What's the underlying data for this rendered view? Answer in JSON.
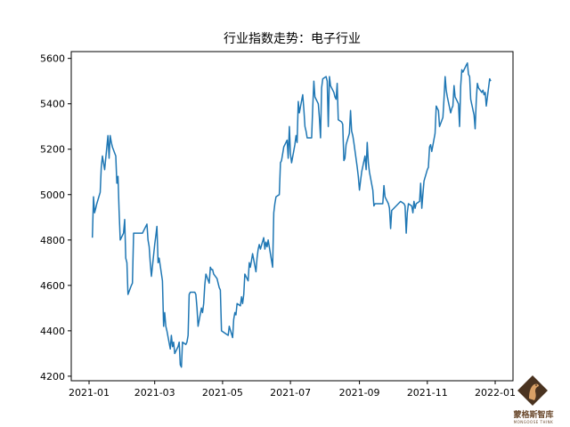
{
  "chart_data": {
    "type": "line",
    "title": "行业指数走势：电子行业",
    "xlabel": "",
    "ylabel": "",
    "ylim": [
      4180,
      5630
    ],
    "xlim": [
      "2020-12-16",
      "2022-01-17"
    ],
    "grid": false,
    "legend": null,
    "line_color": "#1f77b4",
    "x_ticks": [
      "2021-01",
      "2021-03",
      "2021-05",
      "2021-07",
      "2021-09",
      "2021-11",
      "2022-01"
    ],
    "y_ticks": [
      4200,
      4400,
      4600,
      4800,
      5000,
      5200,
      5400,
      5600
    ],
    "series": [
      {
        "name": "电子行业",
        "points": [
          [
            "2021-01-04",
            4810
          ],
          [
            "2021-01-05",
            4990
          ],
          [
            "2021-01-06",
            4920
          ],
          [
            "2021-01-07",
            4940
          ],
          [
            "2021-01-08",
            4960
          ],
          [
            "2021-01-11",
            5010
          ],
          [
            "2021-01-12",
            5120
          ],
          [
            "2021-01-13",
            5170
          ],
          [
            "2021-01-14",
            5140
          ],
          [
            "2021-01-15",
            5110
          ],
          [
            "2021-01-18",
            5260
          ],
          [
            "2021-01-19",
            5160
          ],
          [
            "2021-01-20",
            5260
          ],
          [
            "2021-01-21",
            5230
          ],
          [
            "2021-01-22",
            5210
          ],
          [
            "2021-01-25",
            5170
          ],
          [
            "2021-01-26",
            5050
          ],
          [
            "2021-01-27",
            5080
          ],
          [
            "2021-01-28",
            4930
          ],
          [
            "2021-01-29",
            4800
          ],
          [
            "2021-02-01",
            4830
          ],
          [
            "2021-02-02",
            4890
          ],
          [
            "2021-02-03",
            4720
          ],
          [
            "2021-02-04",
            4700
          ],
          [
            "2021-02-05",
            4560
          ],
          [
            "2021-02-08",
            4600
          ],
          [
            "2021-02-09",
            4610
          ],
          [
            "2021-02-10",
            4830
          ],
          [
            "2021-02-18",
            4830
          ],
          [
            "2021-02-19",
            4840
          ],
          [
            "2021-02-22",
            4870
          ],
          [
            "2021-02-23",
            4800
          ],
          [
            "2021-02-24",
            4770
          ],
          [
            "2021-02-25",
            4700
          ],
          [
            "2021-02-26",
            4640
          ],
          [
            "2021-03-01",
            4780
          ],
          [
            "2021-03-02",
            4820
          ],
          [
            "2021-03-03",
            4860
          ],
          [
            "2021-03-04",
            4700
          ],
          [
            "2021-03-05",
            4720
          ],
          [
            "2021-03-08",
            4620
          ],
          [
            "2021-03-09",
            4420
          ],
          [
            "2021-03-10",
            4480
          ],
          [
            "2021-03-11",
            4420
          ],
          [
            "2021-03-12",
            4400
          ],
          [
            "2021-03-15",
            4320
          ],
          [
            "2021-03-16",
            4380
          ],
          [
            "2021-03-17",
            4330
          ],
          [
            "2021-03-18",
            4350
          ],
          [
            "2021-03-19",
            4300
          ],
          [
            "2021-03-22",
            4330
          ],
          [
            "2021-03-23",
            4350
          ],
          [
            "2021-03-24",
            4250
          ],
          [
            "2021-03-25",
            4240
          ],
          [
            "2021-03-26",
            4350
          ],
          [
            "2021-03-29",
            4340
          ],
          [
            "2021-03-30",
            4350
          ],
          [
            "2021-03-31",
            4380
          ],
          [
            "2021-04-01",
            4560
          ],
          [
            "2021-04-02",
            4570
          ],
          [
            "2021-04-06",
            4570
          ],
          [
            "2021-04-07",
            4560
          ],
          [
            "2021-04-08",
            4500
          ],
          [
            "2021-04-09",
            4420
          ],
          [
            "2021-04-12",
            4500
          ],
          [
            "2021-04-13",
            4480
          ],
          [
            "2021-04-14",
            4520
          ],
          [
            "2021-04-15",
            4600
          ],
          [
            "2021-04-16",
            4650
          ],
          [
            "2021-04-19",
            4610
          ],
          [
            "2021-04-20",
            4680
          ],
          [
            "2021-04-21",
            4670
          ],
          [
            "2021-04-22",
            4670
          ],
          [
            "2021-04-23",
            4650
          ],
          [
            "2021-04-26",
            4630
          ],
          [
            "2021-04-27",
            4610
          ],
          [
            "2021-04-28",
            4590
          ],
          [
            "2021-04-29",
            4580
          ],
          [
            "2021-04-30",
            4400
          ],
          [
            "2021-05-06",
            4380
          ],
          [
            "2021-05-07",
            4420
          ],
          [
            "2021-05-10",
            4370
          ],
          [
            "2021-05-11",
            4450
          ],
          [
            "2021-05-12",
            4480
          ],
          [
            "2021-05-13",
            4470
          ],
          [
            "2021-05-14",
            4520
          ],
          [
            "2021-05-17",
            4510
          ],
          [
            "2021-05-18",
            4550
          ],
          [
            "2021-05-19",
            4520
          ],
          [
            "2021-05-20",
            4560
          ],
          [
            "2021-05-21",
            4650
          ],
          [
            "2021-05-24",
            4620
          ],
          [
            "2021-05-25",
            4700
          ],
          [
            "2021-05-26",
            4680
          ],
          [
            "2021-05-27",
            4710
          ],
          [
            "2021-05-28",
            4740
          ],
          [
            "2021-05-31",
            4660
          ],
          [
            "2021-06-01",
            4720
          ],
          [
            "2021-06-02",
            4760
          ],
          [
            "2021-06-03",
            4780
          ],
          [
            "2021-06-04",
            4760
          ],
          [
            "2021-06-07",
            4810
          ],
          [
            "2021-06-08",
            4760
          ],
          [
            "2021-06-09",
            4790
          ],
          [
            "2021-06-10",
            4770
          ],
          [
            "2021-06-11",
            4800
          ],
          [
            "2021-06-15",
            4680
          ],
          [
            "2021-06-16",
            4920
          ],
          [
            "2021-06-17",
            4960
          ],
          [
            "2021-06-18",
            4990
          ],
          [
            "2021-06-21",
            5000
          ],
          [
            "2021-06-22",
            5140
          ],
          [
            "2021-06-23",
            5150
          ],
          [
            "2021-06-24",
            5180
          ],
          [
            "2021-06-25",
            5210
          ],
          [
            "2021-06-28",
            5240
          ],
          [
            "2021-06-29",
            5160
          ],
          [
            "2021-06-30",
            5300
          ],
          [
            "2021-07-01",
            5180
          ],
          [
            "2021-07-02",
            5140
          ],
          [
            "2021-07-05",
            5220
          ],
          [
            "2021-07-06",
            5260
          ],
          [
            "2021-07-07",
            5230
          ],
          [
            "2021-07-08",
            5410
          ],
          [
            "2021-07-09",
            5360
          ],
          [
            "2021-07-12",
            5440
          ],
          [
            "2021-07-13",
            5380
          ],
          [
            "2021-07-14",
            5300
          ],
          [
            "2021-07-15",
            5280
          ],
          [
            "2021-07-16",
            5250
          ],
          [
            "2021-07-19",
            5250
          ],
          [
            "2021-07-20",
            5250
          ],
          [
            "2021-07-21",
            5380
          ],
          [
            "2021-07-22",
            5500
          ],
          [
            "2021-07-23",
            5430
          ],
          [
            "2021-07-26",
            5400
          ],
          [
            "2021-07-27",
            5340
          ],
          [
            "2021-07-28",
            5250
          ],
          [
            "2021-07-29",
            5470
          ],
          [
            "2021-07-30",
            5510
          ],
          [
            "2021-08-02",
            5520
          ],
          [
            "2021-08-03",
            5500
          ],
          [
            "2021-08-04",
            5300
          ],
          [
            "2021-08-05",
            5520
          ],
          [
            "2021-08-06",
            5480
          ],
          [
            "2021-08-09",
            5450
          ],
          [
            "2021-08-10",
            5430
          ],
          [
            "2021-08-11",
            5420
          ],
          [
            "2021-08-12",
            5490
          ],
          [
            "2021-08-13",
            5330
          ],
          [
            "2021-08-16",
            5320
          ],
          [
            "2021-08-17",
            5310
          ],
          [
            "2021-08-18",
            5150
          ],
          [
            "2021-08-19",
            5160
          ],
          [
            "2021-08-20",
            5220
          ],
          [
            "2021-08-23",
            5270
          ],
          [
            "2021-08-24",
            5370
          ],
          [
            "2021-08-25",
            5280
          ],
          [
            "2021-08-26",
            5260
          ],
          [
            "2021-08-27",
            5230
          ],
          [
            "2021-08-30",
            5120
          ],
          [
            "2021-08-31",
            5080
          ],
          [
            "2021-09-01",
            5020
          ],
          [
            "2021-09-02",
            5060
          ],
          [
            "2021-09-03",
            5100
          ],
          [
            "2021-09-06",
            5170
          ],
          [
            "2021-09-07",
            5110
          ],
          [
            "2021-09-08",
            5230
          ],
          [
            "2021-09-09",
            5140
          ],
          [
            "2021-09-10",
            5100
          ],
          [
            "2021-09-13",
            5020
          ],
          [
            "2021-09-14",
            4950
          ],
          [
            "2021-09-15",
            4960
          ],
          [
            "2021-09-16",
            4960
          ],
          [
            "2021-09-17",
            4960
          ],
          [
            "2021-09-22",
            4960
          ],
          [
            "2021-09-23",
            5040
          ],
          [
            "2021-09-24",
            4990
          ],
          [
            "2021-09-27",
            4960
          ],
          [
            "2021-09-28",
            4940
          ],
          [
            "2021-09-29",
            4850
          ],
          [
            "2021-09-30",
            4930
          ],
          [
            "2021-10-08",
            4970
          ],
          [
            "2021-10-11",
            4960
          ],
          [
            "2021-10-12",
            4950
          ],
          [
            "2021-10-13",
            4830
          ],
          [
            "2021-10-14",
            4920
          ],
          [
            "2021-10-15",
            4960
          ],
          [
            "2021-10-18",
            4950
          ],
          [
            "2021-10-19",
            4920
          ],
          [
            "2021-10-20",
            4970
          ],
          [
            "2021-10-21",
            4940
          ],
          [
            "2021-10-22",
            4960
          ],
          [
            "2021-10-25",
            4970
          ],
          [
            "2021-10-26",
            5050
          ],
          [
            "2021-10-27",
            4940
          ],
          [
            "2021-10-28",
            5000
          ],
          [
            "2021-10-29",
            5060
          ],
          [
            "2021-11-01",
            5110
          ],
          [
            "2021-11-02",
            5120
          ],
          [
            "2021-11-03",
            5210
          ],
          [
            "2021-11-04",
            5220
          ],
          [
            "2021-11-05",
            5190
          ],
          [
            "2021-11-08",
            5270
          ],
          [
            "2021-11-09",
            5390
          ],
          [
            "2021-11-10",
            5380
          ],
          [
            "2021-11-11",
            5370
          ],
          [
            "2021-11-12",
            5300
          ],
          [
            "2021-11-15",
            5340
          ],
          [
            "2021-11-16",
            5420
          ],
          [
            "2021-11-17",
            5520
          ],
          [
            "2021-11-18",
            5460
          ],
          [
            "2021-11-19",
            5430
          ],
          [
            "2021-11-22",
            5360
          ],
          [
            "2021-11-23",
            5380
          ],
          [
            "2021-11-24",
            5390
          ],
          [
            "2021-11-25",
            5480
          ],
          [
            "2021-11-26",
            5430
          ],
          [
            "2021-11-29",
            5400
          ],
          [
            "2021-11-30",
            5300
          ],
          [
            "2021-12-01",
            5480
          ],
          [
            "2021-12-02",
            5550
          ],
          [
            "2021-12-03",
            5540
          ],
          [
            "2021-12-06",
            5570
          ],
          [
            "2021-12-07",
            5580
          ],
          [
            "2021-12-08",
            5530
          ],
          [
            "2021-12-09",
            5520
          ],
          [
            "2021-12-10",
            5420
          ],
          [
            "2021-12-13",
            5350
          ],
          [
            "2021-12-14",
            5290
          ],
          [
            "2021-12-15",
            5420
          ],
          [
            "2021-12-16",
            5490
          ],
          [
            "2021-12-17",
            5470
          ],
          [
            "2021-12-20",
            5450
          ],
          [
            "2021-12-21",
            5460
          ],
          [
            "2021-12-22",
            5440
          ],
          [
            "2021-12-23",
            5450
          ],
          [
            "2021-12-24",
            5390
          ],
          [
            "2021-12-27",
            5510
          ],
          [
            "2021-12-28",
            5500
          ]
        ]
      }
    ]
  },
  "watermark": {
    "name_cn": "蒙格斯智库",
    "name_en": "MONGOOSE THINK",
    "icon": "mongoose-diamond-logo-icon",
    "colors": {
      "diamond": "#4a3320",
      "text": "#6b4a2e"
    }
  }
}
